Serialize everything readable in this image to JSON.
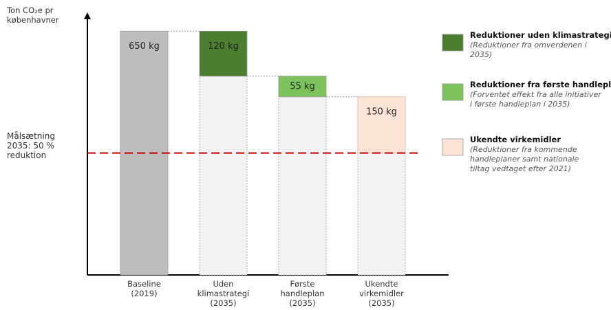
{
  "chart_data": {
    "type": "waterfall",
    "y_label": "Ton CO₂e pr\nkøbenhavner",
    "categories": [
      "Baseline\n(2019)",
      "Uden\nklimastrategi\n(2035)",
      "Første\nhandleplan\n(2035)",
      "Ukendte\nvirkemidler\n(2035)"
    ],
    "values": [
      650,
      120,
      55,
      150
    ],
    "value_labels": [
      "650 kg",
      "120 kg",
      "55 kg",
      "150 kg"
    ],
    "colors": [
      "#bdbdbd",
      "#4b7f2f",
      "#7dc35b",
      "#fbe4d5"
    ],
    "remainder_color": "#f2f2f2",
    "ylim": [
      0,
      700
    ],
    "target": {
      "value": 325,
      "label": "Målsætning\n2035: 50 %\nreduktion",
      "color": "#c00000"
    },
    "legend": [
      {
        "label": "Reduktioner uden klimastrategi",
        "note": "(Reduktioner fra omverdenen i\n2035)",
        "color": "#4b7f2f"
      },
      {
        "label": "Reduktioner fra første handleplan",
        "note": "(Forventet effekt fra alle initiativer\ni første handleplan i 2035)",
        "color": "#7dc35b"
      },
      {
        "label": "Ukendte virkemidler",
        "note": "(Reduktioner fra kommende\nhandleplaner samt nationale\ntiltag vedtaget efter 2021)",
        "color": "#fbe4d5"
      }
    ]
  }
}
